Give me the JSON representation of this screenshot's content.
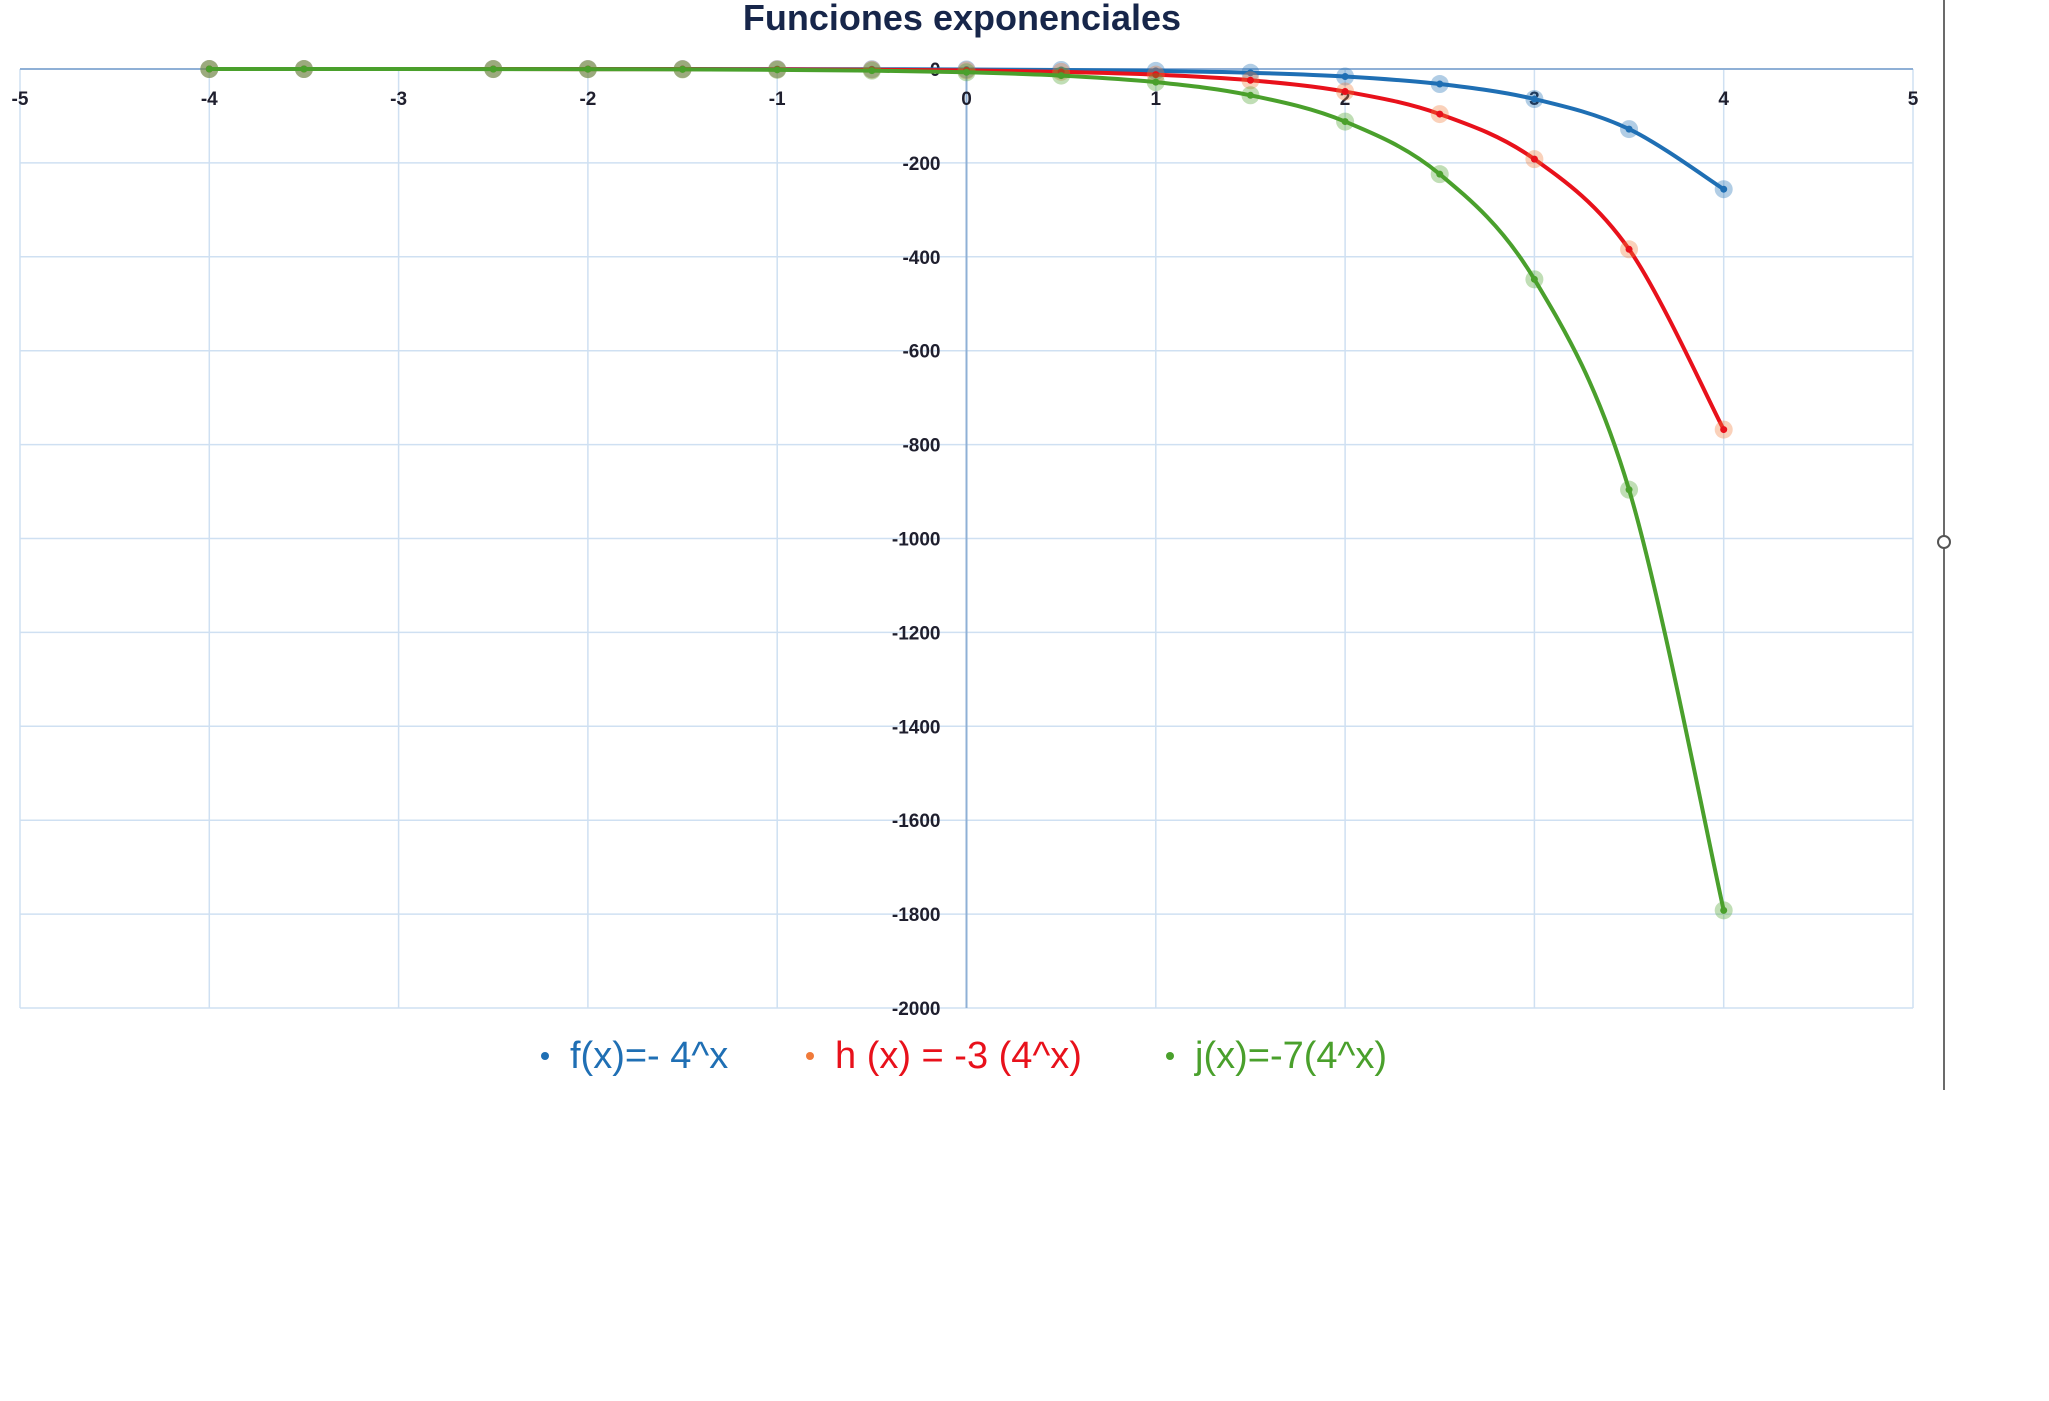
{
  "chart_data": {
    "type": "line",
    "title": "Funciones exponenciales",
    "xlabel": "",
    "ylabel": "",
    "xlim": [
      -5,
      5
    ],
    "ylim": [
      -2000,
      0
    ],
    "x_ticks": [
      -5,
      -4,
      -3,
      -2,
      -1,
      0,
      1,
      2,
      3,
      4,
      5
    ],
    "y_ticks": [
      0,
      -200,
      -400,
      -600,
      -800,
      -1000,
      -1200,
      -1400,
      -1600,
      -1800,
      -2000
    ],
    "grid": true,
    "legend_position": "bottom",
    "x": [
      -4,
      -3.5,
      -2.5,
      -2,
      -1.5,
      -1,
      -0.5,
      0,
      0.5,
      1,
      1.5,
      2,
      2.5,
      3,
      3.5,
      4
    ],
    "series": [
      {
        "name": "f(x)=- 4^x",
        "color": "#1f6fb4",
        "marker_color": "#1f6fb4",
        "values": [
          -0.004,
          -0.008,
          -0.031,
          -0.063,
          -0.125,
          -0.25,
          -0.5,
          -1,
          -2,
          -4,
          -8,
          -16,
          -32,
          -64,
          -128,
          -256
        ]
      },
      {
        "name": "h (x) = -3 (4^x)",
        "color": "#e8111b",
        "marker_color": "#f07a3a",
        "values": [
          -0.012,
          -0.023,
          -0.094,
          -0.188,
          -0.375,
          -0.75,
          -1.5,
          -3,
          -6,
          -12,
          -24,
          -48,
          -96,
          -192,
          -384,
          -768
        ]
      },
      {
        "name": "j(x)=-7(4^x)",
        "color": "#4aa02c",
        "marker_color": "#4aa02c",
        "values": [
          -0.027,
          -0.055,
          -0.219,
          -0.438,
          -0.875,
          -1.75,
          -3.5,
          -7,
          -14,
          -28,
          -56,
          -112,
          -224,
          -448,
          -896,
          -1792
        ]
      }
    ]
  }
}
